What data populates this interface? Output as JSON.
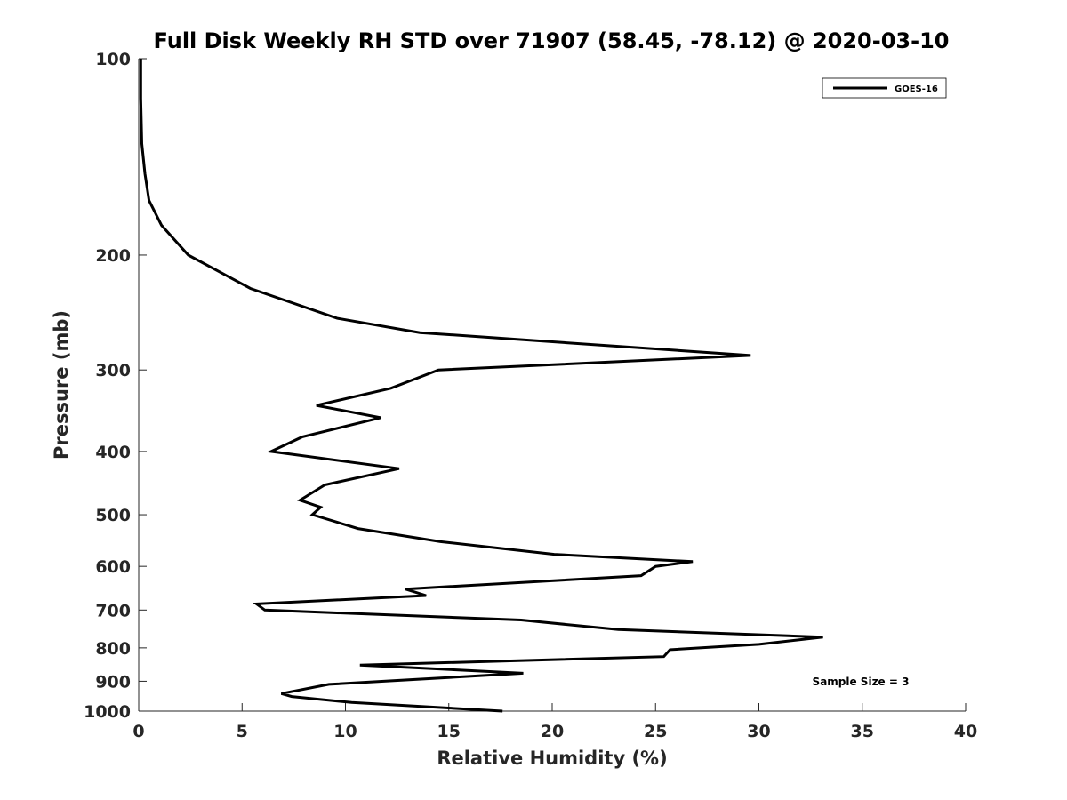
{
  "chart_data": {
    "type": "line",
    "title": "Full Disk Weekly RH STD over 71907 (58.45, -78.12) @ 2020-03-10",
    "xlabel": "Relative Humidity (%)",
    "ylabel": "Pressure (mb)",
    "xlim": [
      0,
      40
    ],
    "ylim": [
      100,
      1000
    ],
    "y_scale": "log",
    "y_reversed": true,
    "xticks": [
      "0",
      "5",
      "10",
      "15",
      "20",
      "25",
      "30",
      "35",
      "40"
    ],
    "yticks": [
      "100",
      "200",
      "300",
      "400",
      "500",
      "600",
      "700",
      "800",
      "900",
      "1000"
    ],
    "grid": false,
    "legend_position": "top-right",
    "annotation": "Sample Size = 3",
    "series": [
      {
        "name": "GOES-16",
        "color": "#000000",
        "points": [
          [
            0.1,
            100
          ],
          [
            0.1,
            115
          ],
          [
            0.15,
            135
          ],
          [
            0.3,
            150
          ],
          [
            0.5,
            165
          ],
          [
            1.1,
            180
          ],
          [
            2.4,
            200
          ],
          [
            5.4,
            225
          ],
          [
            9.6,
            250
          ],
          [
            13.6,
            263
          ],
          [
            29.6,
            285
          ],
          [
            14.5,
            300
          ],
          [
            12.2,
            320
          ],
          [
            8.6,
            340
          ],
          [
            11.7,
            355
          ],
          [
            7.9,
            380
          ],
          [
            6.4,
            400
          ],
          [
            12.6,
            425
          ],
          [
            9.0,
            450
          ],
          [
            7.8,
            475
          ],
          [
            8.8,
            487
          ],
          [
            8.4,
            500
          ],
          [
            10.6,
            525
          ],
          [
            14.6,
            550
          ],
          [
            20.1,
            575
          ],
          [
            26.8,
            590
          ],
          [
            25.0,
            600
          ],
          [
            24.3,
            620
          ],
          [
            12.9,
            650
          ],
          [
            13.9,
            665
          ],
          [
            5.7,
            685
          ],
          [
            6.1,
            700
          ],
          [
            18.5,
            725
          ],
          [
            23.2,
            750
          ],
          [
            33.1,
            770
          ],
          [
            30.0,
            790
          ],
          [
            25.7,
            805
          ],
          [
            25.4,
            825
          ],
          [
            10.7,
            850
          ],
          [
            18.6,
            875
          ],
          [
            9.2,
            910
          ],
          [
            6.9,
            940
          ],
          [
            7.4,
            950
          ],
          [
            10.3,
            970
          ],
          [
            17.6,
            1000
          ]
        ]
      }
    ]
  }
}
